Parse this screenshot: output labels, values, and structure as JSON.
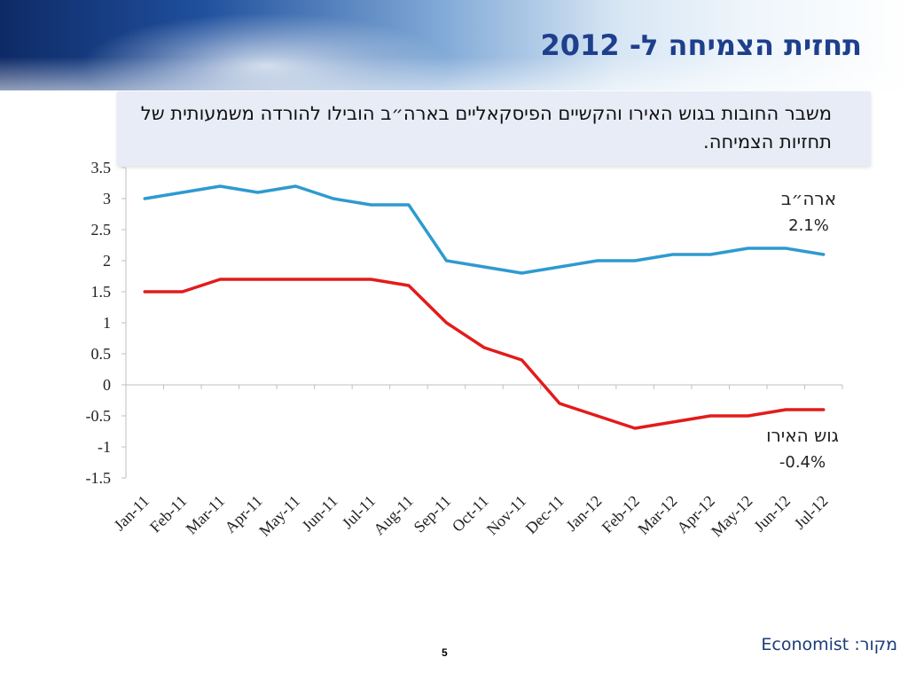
{
  "slide": {
    "title": "תחזית הצמיחה ל- 2012",
    "subtitle": "משבר החובות בגוש האירו והקשיים הפיסקאליים בארה״ב הובילו להורדה משמעותית של תחזיות הצמיחה.",
    "source_label": "מקור:",
    "source_value": "Economist",
    "page_number": "5"
  },
  "chart_data": {
    "type": "line",
    "categories": [
      "Jan-11",
      "Feb-11",
      "Mar-11",
      "Apr-11",
      "May-11",
      "Jun-11",
      "Jul-11",
      "Aug-11",
      "Sep-11",
      "Oct-11",
      "Nov-11",
      "Dec-11",
      "Jan-12",
      "Feb-12",
      "Mar-12",
      "Apr-12",
      "May-12",
      "Jun-12",
      "Jul-12"
    ],
    "series": [
      {
        "name": "ארה״ב",
        "end_label": "2.1%",
        "color": "#2e9ad0",
        "values": [
          3.0,
          3.1,
          3.2,
          3.1,
          3.2,
          3.0,
          2.9,
          2.9,
          2.0,
          1.9,
          1.8,
          1.9,
          2.0,
          2.0,
          2.1,
          2.1,
          2.2,
          2.2,
          2.1
        ]
      },
      {
        "name": "גוש האירו",
        "end_label": "-0.4%",
        "color": "#e31b1b",
        "values": [
          1.5,
          1.5,
          1.7,
          1.7,
          1.7,
          1.7,
          1.7,
          1.6,
          1.0,
          0.6,
          0.4,
          -0.3,
          -0.5,
          -0.7,
          -0.6,
          -0.5,
          -0.5,
          -0.4,
          -0.4
        ]
      }
    ],
    "ylim": [
      -1.5,
      3.5
    ],
    "yticks": [
      3.5,
      3,
      2.5,
      2,
      1.5,
      1,
      0.5,
      0,
      -0.5,
      -1,
      -1.5
    ],
    "ytick_labels": [
      "3.5",
      "3",
      "2.5",
      "2",
      "1.5",
      "1",
      "0.5",
      "0",
      "-0.5",
      "-1",
      "-1.5"
    ],
    "grid": false,
    "legend": "inline labels at right end of each series",
    "axis_color": "#bfbfbf"
  }
}
